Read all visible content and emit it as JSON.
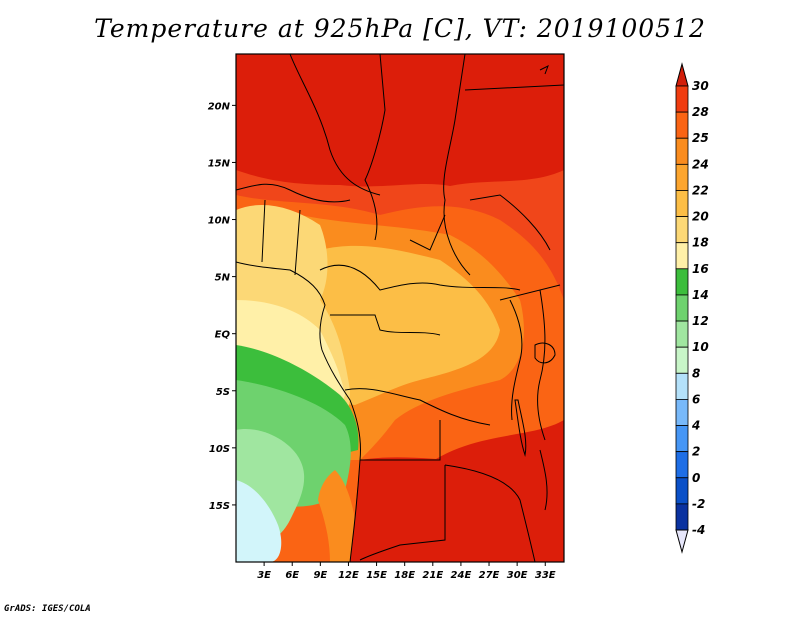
{
  "title": "Temperature at 925hPa [C], VT: 2019100512",
  "credit": "GrADS: IGES/COLA",
  "map": {
    "lon_range": [
      0,
      35
    ],
    "lat_range": [
      -20,
      24.5
    ],
    "lon_ticks": [
      {
        "value": 3,
        "label": "3E"
      },
      {
        "value": 6,
        "label": "6E"
      },
      {
        "value": 9,
        "label": "9E"
      },
      {
        "value": 12,
        "label": "12E"
      },
      {
        "value": 15,
        "label": "15E"
      },
      {
        "value": 18,
        "label": "18E"
      },
      {
        "value": 21,
        "label": "21E"
      },
      {
        "value": 24,
        "label": "24E"
      },
      {
        "value": 27,
        "label": "27E"
      },
      {
        "value": 30,
        "label": "30E"
      },
      {
        "value": 33,
        "label": "33E"
      }
    ],
    "lat_ticks": [
      {
        "value": 20,
        "label": "20N"
      },
      {
        "value": 15,
        "label": "15N"
      },
      {
        "value": 10,
        "label": "10N"
      },
      {
        "value": 5,
        "label": "5N"
      },
      {
        "value": 0,
        "label": "EQ"
      },
      {
        "value": -5,
        "label": "5S"
      },
      {
        "value": -10,
        "label": "10S"
      },
      {
        "value": -15,
        "label": "15S"
      }
    ]
  },
  "colorbar": {
    "levels": [
      "30",
      "28",
      "25",
      "24",
      "22",
      "20",
      "18",
      "16",
      "14",
      "12",
      "10",
      "8",
      "6",
      "4",
      "2",
      "0",
      "-2",
      "-4"
    ],
    "colors": [
      "#f03c10",
      "#fa6414",
      "#fa8c1e",
      "#fca52e",
      "#fcbe46",
      "#fcd876",
      "#fff0a8",
      "#3cbe3c",
      "#6ed26e",
      "#a0e6a0",
      "#c8f5c8",
      "#b4e1fa",
      "#78b9fa",
      "#4696f5",
      "#1e6ee6",
      "#0a50c8",
      "#0a32a0",
      "#140a78"
    ],
    "top_color": "#d21e0a",
    "bottom_color": "#e6e6fa"
  }
}
